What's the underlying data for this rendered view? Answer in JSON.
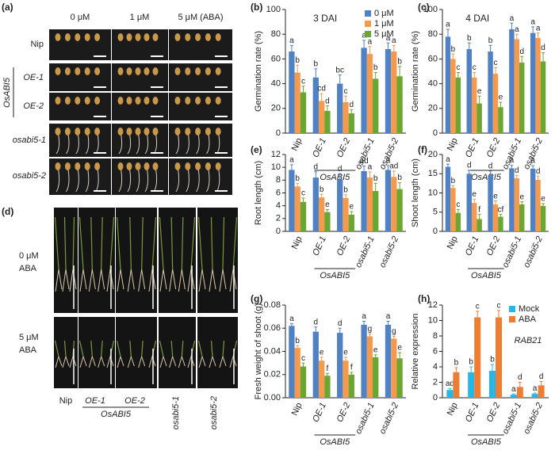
{
  "photos": [
    {
      "panel": "(a)",
      "columns": [
        "0 μM",
        "1 μM",
        "5 μM (ABA)"
      ],
      "rows": [
        "Nip",
        "OE-1",
        "OE-2",
        "osabi5-1",
        "osabi5-2"
      ],
      "group_label": "OsABI5"
    },
    {
      "panel": "(d)",
      "rows": [
        [
          "0 μM",
          "ABA"
        ],
        [
          "5 μM",
          "ABA"
        ]
      ],
      "columns": [
        "Nip",
        "OE-1",
        "OE-2",
        "osabi5-1",
        "osabi5-2"
      ],
      "group_label": "OsABI5"
    }
  ],
  "chart_data": [
    {
      "type": "bar",
      "panel": "(b)",
      "title": "3 DAI",
      "ylabel": "Germination rate (%)",
      "categories": [
        "Nip",
        "OE-1",
        "OE-2",
        "osabi5-1",
        "osabi5-2"
      ],
      "group_label": "OsABI5",
      "ylim": [
        0,
        100
      ],
      "yticks": [
        0,
        20,
        40,
        60,
        80,
        100
      ],
      "legend": "upper right",
      "series": [
        {
          "name": "0 μM",
          "color": "#4f81c4",
          "values": [
            66,
            45,
            40,
            69,
            68
          ],
          "errors": [
            5,
            7,
            7,
            6,
            5
          ],
          "letters": [
            "a",
            "b",
            "bc",
            "a",
            "a"
          ]
        },
        {
          "name": "1 μM",
          "color": "#f39a4e",
          "values": [
            49,
            26,
            25,
            64,
            66
          ],
          "errors": [
            6,
            6,
            5,
            6,
            5
          ],
          "letters": [
            "b",
            "cd",
            "c",
            "a",
            "a"
          ]
        },
        {
          "name": "5 μM",
          "color": "#6aa632",
          "values": [
            33,
            18,
            16,
            44,
            46
          ],
          "errors": [
            5,
            4,
            3,
            5,
            8
          ],
          "letters": [
            "c",
            "d",
            "d",
            "b",
            "b"
          ]
        }
      ]
    },
    {
      "type": "bar",
      "panel": "(c)",
      "title": "4 DAI",
      "ylabel": "Germination rate (%)",
      "categories": [
        "Nip",
        "OE-1",
        "OE-2",
        "osabi5-1",
        "osabi5-2"
      ],
      "group_label": "OsABI5",
      "ylim": [
        0,
        100
      ],
      "yticks": [
        0,
        20,
        40,
        60,
        80,
        100
      ],
      "series": [
        {
          "name": "0 μM",
          "color": "#4f81c4",
          "values": [
            78,
            68,
            66,
            84,
            81
          ],
          "errors": [
            6,
            5,
            5,
            5,
            5
          ],
          "letters": [
            "a",
            "b",
            "b",
            "a",
            "a"
          ]
        },
        {
          "name": "1 μM",
          "color": "#f39a4e",
          "values": [
            60,
            45,
            48,
            76,
            77
          ],
          "errors": [
            4,
            4,
            5,
            4,
            4
          ],
          "letters": [
            "b",
            "c",
            "c",
            "a",
            "a"
          ]
        },
        {
          "name": "5 μM",
          "color": "#6aa632",
          "values": [
            45,
            24,
            21,
            57,
            58
          ],
          "errors": [
            4,
            6,
            4,
            5,
            7
          ],
          "letters": [
            "c",
            "e",
            "e",
            "d",
            "d"
          ]
        }
      ]
    },
    {
      "type": "bar",
      "panel": "(e)",
      "ylabel": "Root length (cm)",
      "categories": [
        "Nip",
        "OE-1",
        "OE-2",
        "osabi5-1",
        "osabi5-2"
      ],
      "group_label": "OsABI5",
      "ylim": [
        0,
        12
      ],
      "yticks": [
        0,
        2,
        4,
        6,
        8,
        10,
        12
      ],
      "series": [
        {
          "name": "0 μM",
          "color": "#4f81c4",
          "values": [
            9.6,
            8.4,
            8.1,
            9.4,
            9.6
          ],
          "errors": [
            0.8,
            0.9,
            0.9,
            0.8,
            0.7
          ],
          "letters": [
            "a",
            "d",
            "d",
            "ad",
            "a"
          ]
        },
        {
          "name": "1 μM",
          "color": "#f39a4e",
          "values": [
            7.0,
            5.3,
            5.2,
            8.4,
            8.5
          ],
          "errors": [
            0.5,
            0.5,
            0.5,
            0.9,
            0.9
          ],
          "letters": [
            "b",
            "b",
            "b",
            "a",
            "ad"
          ]
        },
        {
          "name": "5 μM",
          "color": "#6aa632",
          "values": [
            4.6,
            3.0,
            2.6,
            6.3,
            6.6
          ],
          "errors": [
            0.6,
            0.4,
            0.5,
            1.2,
            1.0
          ],
          "letters": [
            "c",
            "e",
            "e",
            "b",
            "b"
          ]
        }
      ]
    },
    {
      "type": "bar",
      "panel": "(f)",
      "ylabel": "Shoot length (cm)",
      "categories": [
        "Nip",
        "OE-1",
        "OE-2",
        "osabi5-1",
        "osabi5-2"
      ],
      "group_label": "OsABI5",
      "ylim": [
        0,
        20
      ],
      "yticks": [
        0,
        5,
        10,
        15,
        20
      ],
      "series": [
        {
          "name": "0 μM",
          "color": "#4f81c4",
          "values": [
            16.8,
            15.0,
            14.7,
            16.4,
            16.3
          ],
          "errors": [
            0.7,
            0.9,
            1.0,
            0.8,
            0.8
          ],
          "letters": [
            "a",
            "d",
            "d",
            "a",
            "a"
          ]
        },
        {
          "name": "1 μM",
          "color": "#f39a4e",
          "values": [
            11.3,
            7.4,
            7.0,
            13.8,
            13.4
          ],
          "errors": [
            0.6,
            1.0,
            0.9,
            0.8,
            1.0
          ],
          "letters": [
            "b",
            "e",
            "e",
            "d",
            "d"
          ]
        },
        {
          "name": "5 μM",
          "color": "#6aa632",
          "values": [
            4.8,
            3.2,
            3.8,
            7.0,
            6.6
          ],
          "errors": [
            0.9,
            1.2,
            0.6,
            0.7,
            0.6
          ],
          "letters": [
            "c",
            "f",
            "cf",
            "e",
            "e"
          ]
        }
      ]
    },
    {
      "type": "bar",
      "panel": "(g)",
      "ylabel": "Fresh weight of shoot (g)",
      "categories": [
        "Nip",
        "OE-1",
        "OE-2",
        "osabi5-1",
        "osabi5-2"
      ],
      "group_label": "OsABI5",
      "ylim": [
        0,
        0.08
      ],
      "yticks": [
        {
          "value": 0,
          "label": "0.00"
        },
        0.02,
        0.04,
        0.06,
        0.08
      ],
      "series": [
        {
          "name": "0 μM",
          "color": "#4f81c4",
          "values": [
            0.062,
            0.057,
            0.056,
            0.063,
            0.063
          ],
          "errors": [
            0.002,
            0.004,
            0.004,
            0.003,
            0.003
          ],
          "letters": [
            "a",
            "d",
            "d",
            "a",
            "a"
          ]
        },
        {
          "name": "1 μM",
          "color": "#f39a4e",
          "values": [
            0.043,
            0.032,
            0.032,
            0.053,
            0.051
          ],
          "errors": [
            0.002,
            0.003,
            0.003,
            0.002,
            0.002
          ],
          "letters": [
            "b",
            "e",
            "e",
            "g",
            "g"
          ]
        },
        {
          "name": "5 μM",
          "color": "#6aa632",
          "values": [
            0.027,
            0.019,
            0.02,
            0.035,
            0.034
          ],
          "errors": [
            0.003,
            0.002,
            0.002,
            0.002,
            0.005
          ],
          "letters": [
            "c",
            "f",
            "f",
            "e",
            "e"
          ]
        }
      ]
    },
    {
      "type": "bar",
      "panel": "(h)",
      "ylabel": "Relative expression",
      "annotation": "RAB21",
      "categories": [
        "Nip",
        "OE-1",
        "OE-2",
        "osabi5-1",
        "osabi5-2"
      ],
      "group_label": "OsABI5",
      "ylim": [
        0,
        12
      ],
      "yticks": [
        0,
        2,
        4,
        6,
        8,
        10,
        12
      ],
      "legend": "upper right",
      "series": [
        {
          "name": "Mock",
          "color": "#29b6e6",
          "values": [
            1.0,
            3.3,
            3.5,
            0.4,
            0.5
          ],
          "errors": [
            0.2,
            0.7,
            0.8,
            0.1,
            0.1
          ],
          "letters": [
            "ad",
            "b",
            "b",
            "a",
            "a"
          ]
        },
        {
          "name": "ABA",
          "color": "#ef7d31",
          "values": [
            3.3,
            10.4,
            10.4,
            1.4,
            1.6
          ],
          "errors": [
            0.6,
            0.8,
            0.9,
            0.6,
            0.5
          ],
          "letters": [
            "b",
            "c",
            "c",
            "d",
            "d"
          ]
        }
      ]
    }
  ]
}
